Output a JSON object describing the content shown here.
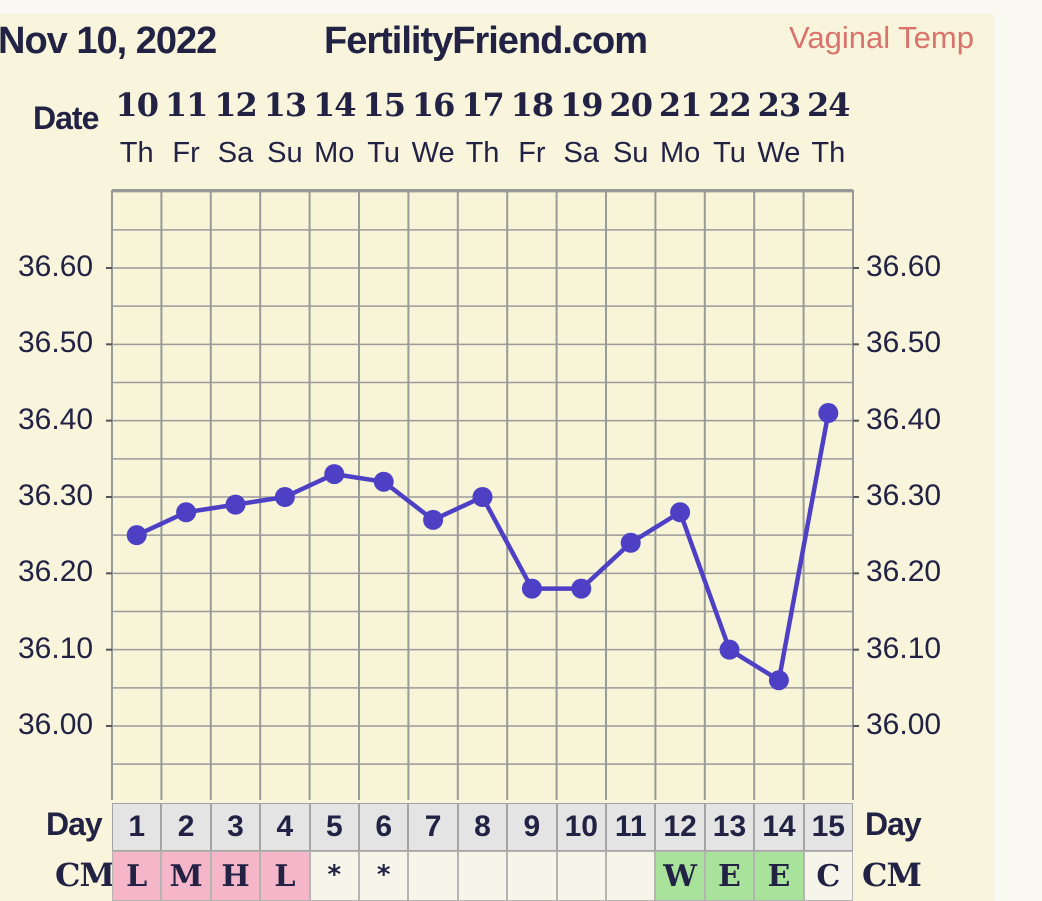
{
  "header": {
    "date": "Nov 10, 2022",
    "site": "FertilityFriend.com",
    "mode": "Vaginal Temp"
  },
  "labels": {
    "date": "Date",
    "day": "Day",
    "cm": "CM"
  },
  "chart_data": {
    "type": "line",
    "dates": [
      "10",
      "11",
      "12",
      "13",
      "14",
      "15",
      "16",
      "17",
      "18",
      "19",
      "20",
      "21",
      "22",
      "23",
      "24"
    ],
    "weekdays": [
      "Th",
      "Fr",
      "Sa",
      "Su",
      "Mo",
      "Tu",
      "We",
      "Th",
      "Fr",
      "Sa",
      "Su",
      "Mo",
      "Tu",
      "We",
      "Th"
    ],
    "cycle_days": [
      "1",
      "2",
      "3",
      "4",
      "5",
      "6",
      "7",
      "8",
      "9",
      "10",
      "11",
      "12",
      "13",
      "14",
      "15"
    ],
    "x": [
      1,
      2,
      3,
      4,
      5,
      6,
      7,
      8,
      9,
      10,
      11,
      12,
      13,
      14,
      15
    ],
    "values": [
      36.25,
      36.28,
      36.29,
      36.3,
      36.33,
      36.32,
      36.27,
      36.3,
      36.18,
      36.18,
      36.24,
      36.28,
      36.1,
      36.06,
      36.41
    ],
    "y_ticks": [
      "36.60",
      "36.50",
      "36.40",
      "36.30",
      "36.20",
      "36.10",
      "36.00"
    ],
    "ylim": [
      35.93,
      36.69
    ],
    "grid": true,
    "line_color": "#4d40c4",
    "cm": [
      {
        "label": "L",
        "color": "#f4b6c8"
      },
      {
        "label": "M",
        "color": "#f4b6c8"
      },
      {
        "label": "H",
        "color": "#f4b6c8"
      },
      {
        "label": "L",
        "color": "#f4b6c8"
      },
      {
        "label": "*",
        "color": "#f7f5ea"
      },
      {
        "label": "*",
        "color": "#f7f5ea"
      },
      {
        "label": "",
        "color": "#f7f5ea"
      },
      {
        "label": "",
        "color": "#f7f5ea"
      },
      {
        "label": "",
        "color": "#f7f5ea"
      },
      {
        "label": "",
        "color": "#f7f5ea"
      },
      {
        "label": "",
        "color": "#f7f5ea"
      },
      {
        "label": "W",
        "color": "#a9e29a"
      },
      {
        "label": "E",
        "color": "#a9e29a"
      },
      {
        "label": "E",
        "color": "#a9e29a"
      },
      {
        "label": "C",
        "color": "#f7f5ea"
      }
    ]
  }
}
